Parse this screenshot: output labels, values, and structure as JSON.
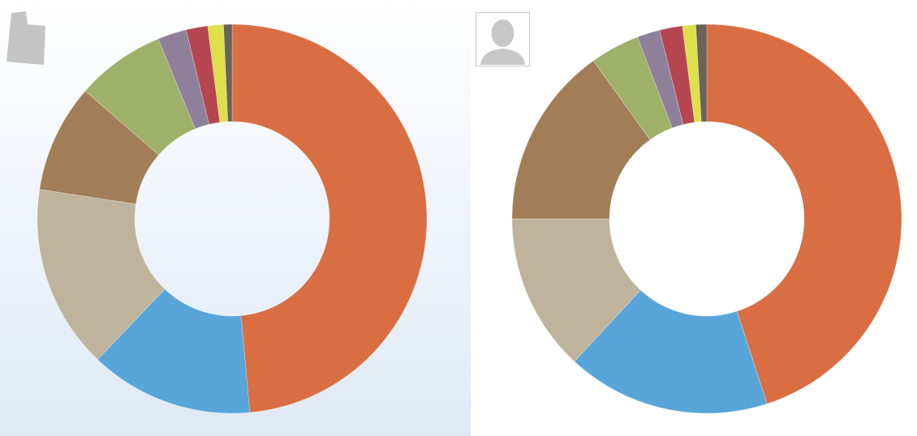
{
  "chart_data": [
    {
      "type": "pie",
      "values": [
        48.6,
        13.6,
        15.3,
        9.0,
        7.4,
        2.4,
        1.8,
        1.3,
        0.7
      ],
      "colors": [
        "#d86e42",
        "#57a5d9",
        "#bfb39c",
        "#a17e57",
        "#9fb068",
        "#8f7f9a",
        "#b5464f",
        "#dde04a",
        "#6b6258"
      ],
      "hole": 0.5
    },
    {
      "type": "pie",
      "values": [
        45.0,
        16.9,
        13.1,
        15.1,
        4.1,
        1.9,
        1.9,
        1.1,
        0.9
      ],
      "colors": [
        "#d86e42",
        "#57a5d9",
        "#bfb39c",
        "#a17e57",
        "#9fb068",
        "#8f7f9a",
        "#b5464f",
        "#dde04a",
        "#6b6258"
      ],
      "hole": 0.5
    }
  ]
}
